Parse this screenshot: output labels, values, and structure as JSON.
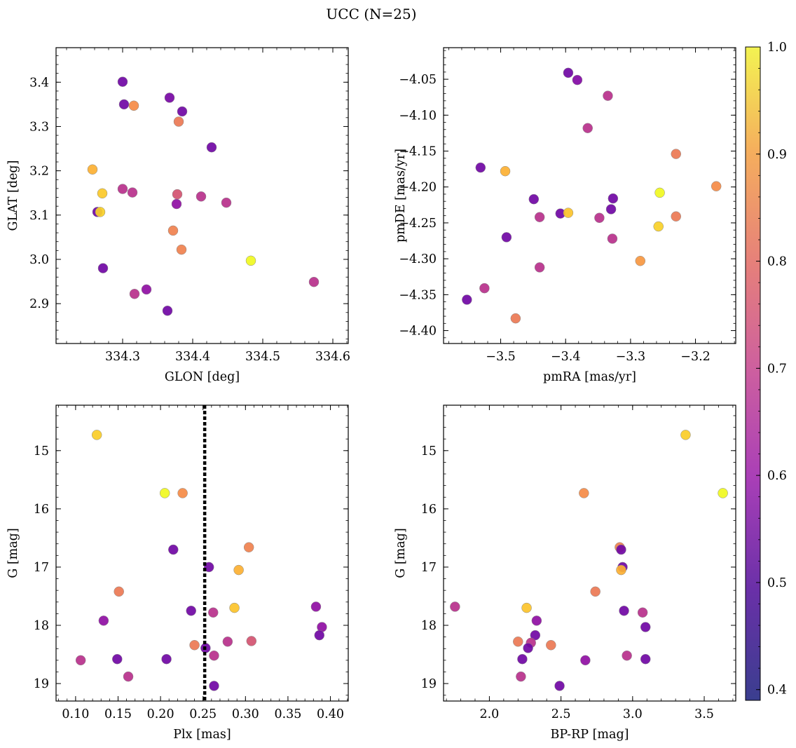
{
  "figure": {
    "title": "UCC (N=25)"
  },
  "colorbar": {
    "cmap": "plasma",
    "range": [
      0.39,
      1.0
    ],
    "ticks": [
      0.4,
      0.5,
      0.6,
      0.7,
      0.8,
      0.9,
      1.0
    ],
    "tick_labels": [
      "0.4",
      "0.5",
      "0.6",
      "0.7",
      "0.8",
      "0.9",
      "1.0"
    ]
  },
  "chart_data": [
    {
      "type": "scatter",
      "title": "",
      "xlabel": "GLON [deg]",
      "ylabel": "GLAT [deg]",
      "xlim": [
        334.205,
        334.622
      ],
      "ylim": [
        2.81,
        3.478
      ],
      "xticks": [
        334.3,
        334.4,
        334.5,
        334.6
      ],
      "xtick_labels": [
        "334.3",
        "334.4",
        "334.5",
        "334.6"
      ],
      "yticks": [
        2.9,
        3.0,
        3.1,
        3.2,
        3.3,
        3.4
      ],
      "ytick_labels": [
        "2.9",
        "3.0",
        "3.1",
        "3.2",
        "3.3",
        "3.4"
      ],
      "invert_y": false,
      "points": [
        {
          "x": 334.3,
          "y": 3.401,
          "c": 0.42
        },
        {
          "x": 334.302,
          "y": 3.35,
          "c": 0.42
        },
        {
          "x": 334.316,
          "y": 3.347,
          "c": 0.74
        },
        {
          "x": 334.367,
          "y": 3.365,
          "c": 0.43
        },
        {
          "x": 334.385,
          "y": 3.334,
          "c": 0.42
        },
        {
          "x": 334.38,
          "y": 3.311,
          "c": 0.7
        },
        {
          "x": 334.427,
          "y": 3.253,
          "c": 0.42
        },
        {
          "x": 334.257,
          "y": 3.203,
          "c": 0.8
        },
        {
          "x": 334.271,
          "y": 3.149,
          "c": 0.86
        },
        {
          "x": 334.3,
          "y": 3.159,
          "c": 0.55
        },
        {
          "x": 334.314,
          "y": 3.151,
          "c": 0.55
        },
        {
          "x": 334.378,
          "y": 3.147,
          "c": 0.62
        },
        {
          "x": 334.412,
          "y": 3.142,
          "c": 0.55
        },
        {
          "x": 334.448,
          "y": 3.128,
          "c": 0.55
        },
        {
          "x": 334.377,
          "y": 3.125,
          "c": 0.47
        },
        {
          "x": 334.264,
          "y": 3.107,
          "c": 0.42
        },
        {
          "x": 334.268,
          "y": 3.107,
          "c": 0.88
        },
        {
          "x": 334.372,
          "y": 3.065,
          "c": 0.72
        },
        {
          "x": 334.384,
          "y": 3.022,
          "c": 0.72
        },
        {
          "x": 334.483,
          "y": 2.997,
          "c": 1.0
        },
        {
          "x": 334.272,
          "y": 2.98,
          "c": 0.42
        },
        {
          "x": 334.573,
          "y": 2.949,
          "c": 0.55
        },
        {
          "x": 334.334,
          "y": 2.932,
          "c": 0.47
        },
        {
          "x": 334.317,
          "y": 2.922,
          "c": 0.55
        },
        {
          "x": 334.364,
          "y": 2.884,
          "c": 0.42
        }
      ]
    },
    {
      "type": "scatter",
      "title": "",
      "xlabel": "pmRA [mas/yr]",
      "ylabel": "pmDE [mas/yr]",
      "xlim": [
        -3.588,
        -3.138
      ],
      "ylim": [
        -4.418,
        -4.006
      ],
      "xticks": [
        -3.5,
        -3.4,
        -3.3,
        -3.2
      ],
      "xtick_labels": [
        "−3.5",
        "−3.4",
        "−3.3",
        "−3.2"
      ],
      "yticks": [
        -4.4,
        -4.35,
        -4.3,
        -4.25,
        -4.2,
        -4.15,
        -4.1,
        -4.05
      ],
      "ytick_labels": [
        "−4.40",
        "−4.35",
        "−4.30",
        "−4.25",
        "−4.20",
        "−4.15",
        "−4.10",
        "−4.05"
      ],
      "invert_y": false,
      "points": [
        {
          "x": -3.396,
          "y": -4.041,
          "c": 0.42
        },
        {
          "x": -3.382,
          "y": -4.051,
          "c": 0.45
        },
        {
          "x": -3.335,
          "y": -4.073,
          "c": 0.55
        },
        {
          "x": -3.366,
          "y": -4.118,
          "c": 0.55
        },
        {
          "x": -3.23,
          "y": -4.154,
          "c": 0.7
        },
        {
          "x": -3.531,
          "y": -4.173,
          "c": 0.42
        },
        {
          "x": -3.493,
          "y": -4.178,
          "c": 0.8
        },
        {
          "x": -3.168,
          "y": -4.199,
          "c": 0.74
        },
        {
          "x": -3.255,
          "y": -4.208,
          "c": 1.0
        },
        {
          "x": -3.449,
          "y": -4.217,
          "c": 0.42
        },
        {
          "x": -3.327,
          "y": -4.216,
          "c": 0.42
        },
        {
          "x": -3.408,
          "y": -4.237,
          "c": 0.42
        },
        {
          "x": -3.396,
          "y": -4.236,
          "c": 0.84
        },
        {
          "x": -3.33,
          "y": -4.231,
          "c": 0.42
        },
        {
          "x": -3.44,
          "y": -4.242,
          "c": 0.55
        },
        {
          "x": -3.348,
          "y": -4.243,
          "c": 0.55
        },
        {
          "x": -3.23,
          "y": -4.241,
          "c": 0.7
        },
        {
          "x": -3.257,
          "y": -4.255,
          "c": 0.88
        },
        {
          "x": -3.491,
          "y": -4.27,
          "c": 0.42
        },
        {
          "x": -3.328,
          "y": -4.272,
          "c": 0.55
        },
        {
          "x": -3.285,
          "y": -4.303,
          "c": 0.76
        },
        {
          "x": -3.44,
          "y": -4.312,
          "c": 0.55
        },
        {
          "x": -3.525,
          "y": -4.341,
          "c": 0.55
        },
        {
          "x": -3.552,
          "y": -4.357,
          "c": 0.42
        },
        {
          "x": -3.477,
          "y": -4.383,
          "c": 0.7
        }
      ]
    },
    {
      "type": "scatter",
      "title": "",
      "xlabel": "Plx [mas]",
      "ylabel": "G [mag]",
      "xlim": [
        0.077,
        0.421
      ],
      "ylim": [
        19.3,
        14.22
      ],
      "xticks": [
        0.1,
        0.15,
        0.2,
        0.25,
        0.3,
        0.35,
        0.4
      ],
      "xtick_labels": [
        "0.10",
        "0.15",
        "0.20",
        "0.25",
        "0.30",
        "0.35",
        "0.40"
      ],
      "yticks": [
        15,
        16,
        17,
        18,
        19
      ],
      "ytick_labels": [
        "15",
        "16",
        "17",
        "18",
        "19"
      ],
      "invert_y": true,
      "vline": 0.252,
      "points": [
        {
          "x": 0.125,
          "y": 14.73,
          "c": 0.87
        },
        {
          "x": 0.205,
          "y": 15.73,
          "c": 1.0
        },
        {
          "x": 0.226,
          "y": 15.73,
          "c": 0.74
        },
        {
          "x": 0.215,
          "y": 16.7,
          "c": 0.42
        },
        {
          "x": 0.304,
          "y": 16.66,
          "c": 0.72
        },
        {
          "x": 0.257,
          "y": 17.0,
          "c": 0.42
        },
        {
          "x": 0.292,
          "y": 17.05,
          "c": 0.8
        },
        {
          "x": 0.151,
          "y": 17.42,
          "c": 0.7
        },
        {
          "x": 0.236,
          "y": 17.75,
          "c": 0.42
        },
        {
          "x": 0.262,
          "y": 17.78,
          "c": 0.55
        },
        {
          "x": 0.287,
          "y": 17.7,
          "c": 0.84
        },
        {
          "x": 0.383,
          "y": 17.68,
          "c": 0.47
        },
        {
          "x": 0.133,
          "y": 17.92,
          "c": 0.47
        },
        {
          "x": 0.39,
          "y": 18.03,
          "c": 0.47
        },
        {
          "x": 0.387,
          "y": 18.17,
          "c": 0.42
        },
        {
          "x": 0.279,
          "y": 18.28,
          "c": 0.55
        },
        {
          "x": 0.307,
          "y": 18.27,
          "c": 0.62
        },
        {
          "x": 0.24,
          "y": 18.34,
          "c": 0.7
        },
        {
          "x": 0.253,
          "y": 18.39,
          "c": 0.42
        },
        {
          "x": 0.263,
          "y": 18.52,
          "c": 0.55
        },
        {
          "x": 0.106,
          "y": 18.6,
          "c": 0.55
        },
        {
          "x": 0.149,
          "y": 18.58,
          "c": 0.42
        },
        {
          "x": 0.207,
          "y": 18.58,
          "c": 0.42
        },
        {
          "x": 0.162,
          "y": 18.88,
          "c": 0.55
        },
        {
          "x": 0.263,
          "y": 19.04,
          "c": 0.42
        }
      ]
    },
    {
      "type": "scatter",
      "title": "",
      "xlabel": "BP-RP [mag]",
      "ylabel": "G [mag]",
      "xlim": [
        1.68,
        3.72
      ],
      "ylim": [
        19.3,
        14.22
      ],
      "xticks": [
        2.0,
        2.5,
        3.0,
        3.5
      ],
      "xtick_labels": [
        "2.0",
        "2.5",
        "3.0",
        "3.5"
      ],
      "yticks": [
        15,
        16,
        17,
        18,
        19
      ],
      "ytick_labels": [
        "15",
        "16",
        "17",
        "18",
        "19"
      ],
      "invert_y": true,
      "points": [
        {
          "x": 3.37,
          "y": 14.73,
          "c": 0.87
        },
        {
          "x": 3.63,
          "y": 15.73,
          "c": 1.0
        },
        {
          "x": 2.66,
          "y": 15.73,
          "c": 0.74
        },
        {
          "x": 2.91,
          "y": 16.66,
          "c": 0.72
        },
        {
          "x": 2.92,
          "y": 16.7,
          "c": 0.42
        },
        {
          "x": 2.93,
          "y": 17.0,
          "c": 0.42
        },
        {
          "x": 2.92,
          "y": 17.05,
          "c": 0.8
        },
        {
          "x": 2.74,
          "y": 17.42,
          "c": 0.7
        },
        {
          "x": 1.76,
          "y": 17.68,
          "c": 0.55
        },
        {
          "x": 2.26,
          "y": 17.7,
          "c": 0.84
        },
        {
          "x": 2.94,
          "y": 17.75,
          "c": 0.42
        },
        {
          "x": 3.07,
          "y": 17.78,
          "c": 0.55
        },
        {
          "x": 2.33,
          "y": 17.92,
          "c": 0.47
        },
        {
          "x": 3.09,
          "y": 18.03,
          "c": 0.42
        },
        {
          "x": 2.32,
          "y": 18.17,
          "c": 0.42
        },
        {
          "x": 2.2,
          "y": 18.28,
          "c": 0.7
        },
        {
          "x": 2.29,
          "y": 18.3,
          "c": 0.55
        },
        {
          "x": 2.27,
          "y": 18.39,
          "c": 0.42
        },
        {
          "x": 2.43,
          "y": 18.34,
          "c": 0.7
        },
        {
          "x": 2.96,
          "y": 18.52,
          "c": 0.55
        },
        {
          "x": 2.23,
          "y": 18.58,
          "c": 0.42
        },
        {
          "x": 2.67,
          "y": 18.6,
          "c": 0.47
        },
        {
          "x": 3.09,
          "y": 18.58,
          "c": 0.42
        },
        {
          "x": 2.22,
          "y": 18.88,
          "c": 0.55
        },
        {
          "x": 2.49,
          "y": 19.04,
          "c": 0.42
        }
      ]
    }
  ]
}
